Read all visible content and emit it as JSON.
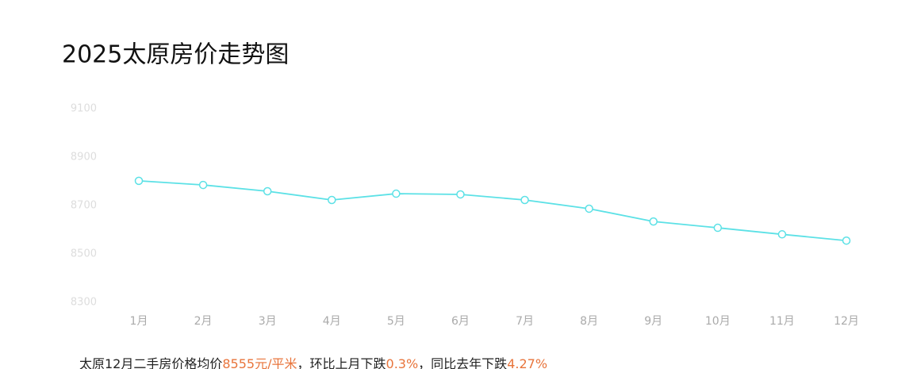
{
  "chart_data": {
    "type": "line",
    "title": "2025太原房价走势图",
    "categories": [
      "1月",
      "2月",
      "3月",
      "4月",
      "5月",
      "6月",
      "7月",
      "8月",
      "9月",
      "10月",
      "11月",
      "12月"
    ],
    "series": [
      {
        "name": "均价",
        "color": "#5ce1e6",
        "values": [
          8802,
          8785,
          8759,
          8723,
          8749,
          8746,
          8723,
          8687,
          8634,
          8608,
          8581,
          8555
        ]
      }
    ],
    "ylim": [
      8300,
      9100
    ],
    "yticks": [
      8300,
      8500,
      8700,
      8900,
      9100
    ],
    "grid": false
  },
  "footer": {
    "prefix": "太原12月二手房价格均价",
    "price": "8555元/平米",
    "mid": "，环比上月下跌",
    "mom": "0.3%",
    "mid2": "，同比去年下跌",
    "yoy": "4.27%"
  }
}
